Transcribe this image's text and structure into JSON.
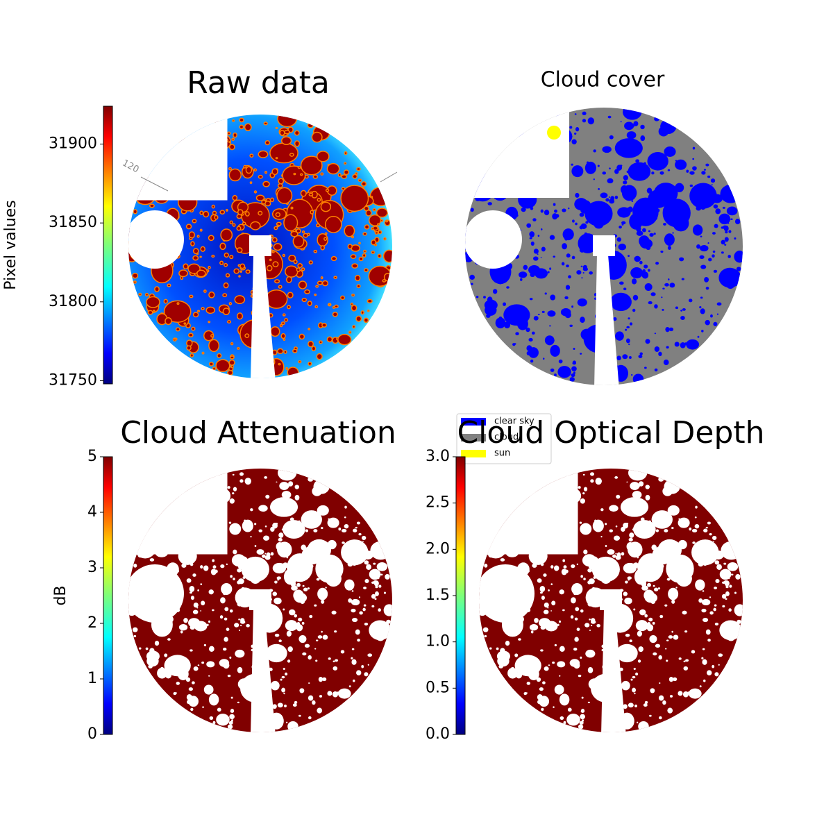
{
  "chart_data": [
    {
      "type": "image",
      "title": "Raw data",
      "annotations": [
        "120"
      ],
      "colorbar": {
        "ylim": [
          31748,
          31924
        ],
        "yticks": [
          31750,
          31800,
          31850,
          31900
        ],
        "ylabel": "Pixel values"
      }
    },
    {
      "type": "image",
      "title": "Cloud cover",
      "legend": {
        "labels": [
          "clear sky",
          "cloud",
          "sun"
        ],
        "colors": [
          "#0000ff",
          "#808080",
          "#ffff00"
        ]
      }
    },
    {
      "type": "image",
      "title": "Cloud Attenuation",
      "colorbar": {
        "ylim": [
          0,
          5
        ],
        "yticks": [
          0,
          1,
          2,
          3,
          4,
          5
        ],
        "ylabel": "dB"
      }
    },
    {
      "type": "image",
      "title": "Cloud Optical Depth",
      "colorbar": {
        "ylim": [
          0,
          3
        ],
        "yticks": [
          {
            "value": 0,
            "label": "0.0"
          },
          0.5,
          {
            "value": 1,
            "label": "1.0"
          },
          1.5,
          {
            "value": 2,
            "label": "2.0"
          },
          2.5,
          {
            "value": 3,
            "label": "3.0"
          }
        ]
      }
    }
  ]
}
